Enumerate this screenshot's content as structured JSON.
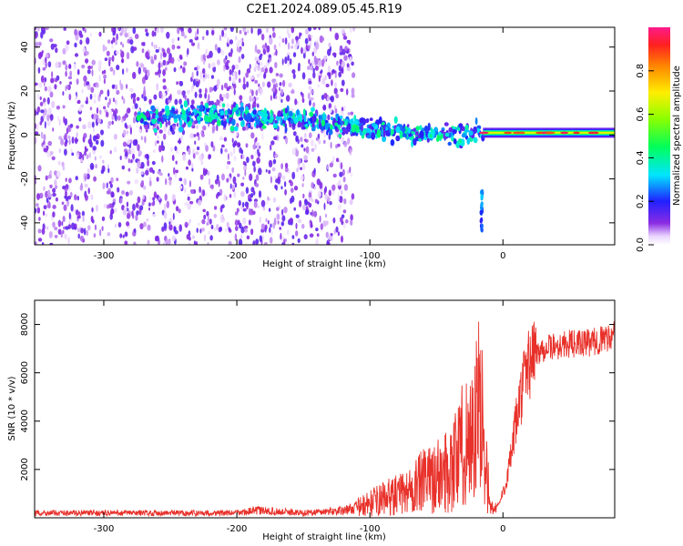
{
  "title": "C2E1.2024.089.05.45.R19",
  "chart_data": [
    {
      "type": "heatmap",
      "xlabel": "Height of straight line (km)",
      "ylabel": "Frequency (Hz)",
      "xlim": [
        -352,
        84
      ],
      "ylim": [
        -50,
        49
      ],
      "x_ticks": [
        -300,
        -200,
        -100,
        0
      ],
      "y_ticks": [
        -40,
        -20,
        0,
        20,
        40
      ],
      "colorbar": {
        "label": "Normalized spectral amplitude",
        "range": [
          0,
          1
        ],
        "ticks": [
          0.0,
          0.2,
          0.4,
          0.6,
          0.8
        ]
      },
      "features": [
        {
          "description": "scattered noise",
          "x_range": [
            -352,
            -112
          ],
          "y_range": [
            -50,
            49
          ],
          "amplitude": 0.15
        },
        {
          "description": "signal band",
          "x": [
            -275,
            -200,
            -140,
            -100,
            -60,
            -30,
            -15
          ],
          "y": [
            8,
            9,
            6,
            3,
            1,
            0,
            2
          ],
          "amplitude": 0.35
        },
        {
          "description": "spike",
          "x": -16,
          "y_range": [
            -45,
            -25
          ],
          "amplitude": 0.3
        },
        {
          "description": "steady line",
          "x_range": [
            -15,
            84
          ],
          "y": 1,
          "amplitude": 0.85
        }
      ]
    },
    {
      "type": "line",
      "xlabel": "Height of straight line (km)",
      "ylabel": "SNR (10 * v/v)",
      "xlim": [
        -352,
        84
      ],
      "ylim": [
        0,
        9000
      ],
      "x_ticks": [
        -300,
        -200,
        -100,
        0
      ],
      "y_ticks": [
        2000,
        4000,
        6000,
        8000
      ],
      "color": "#e8312a",
      "series": [
        {
          "x": [
            -352,
            -300,
            -250,
            -200,
            -185,
            -150,
            -120,
            -105,
            -90,
            -75,
            -60,
            -45,
            -35,
            -28,
            -22,
            -18,
            -14,
            -10,
            -6,
            -2,
            2,
            6,
            10,
            15,
            20,
            25,
            30,
            40,
            50,
            60,
            70,
            80,
            84
          ],
          "y": [
            200,
            200,
            200,
            200,
            300,
            200,
            300,
            500,
            800,
            1000,
            1500,
            1800,
            2500,
            3200,
            3500,
            4500,
            3500,
            500,
            300,
            700,
            1400,
            2500,
            4000,
            5500,
            6500,
            6800,
            7000,
            7100,
            7200,
            7200,
            7300,
            7500,
            7600
          ]
        }
      ]
    }
  ]
}
